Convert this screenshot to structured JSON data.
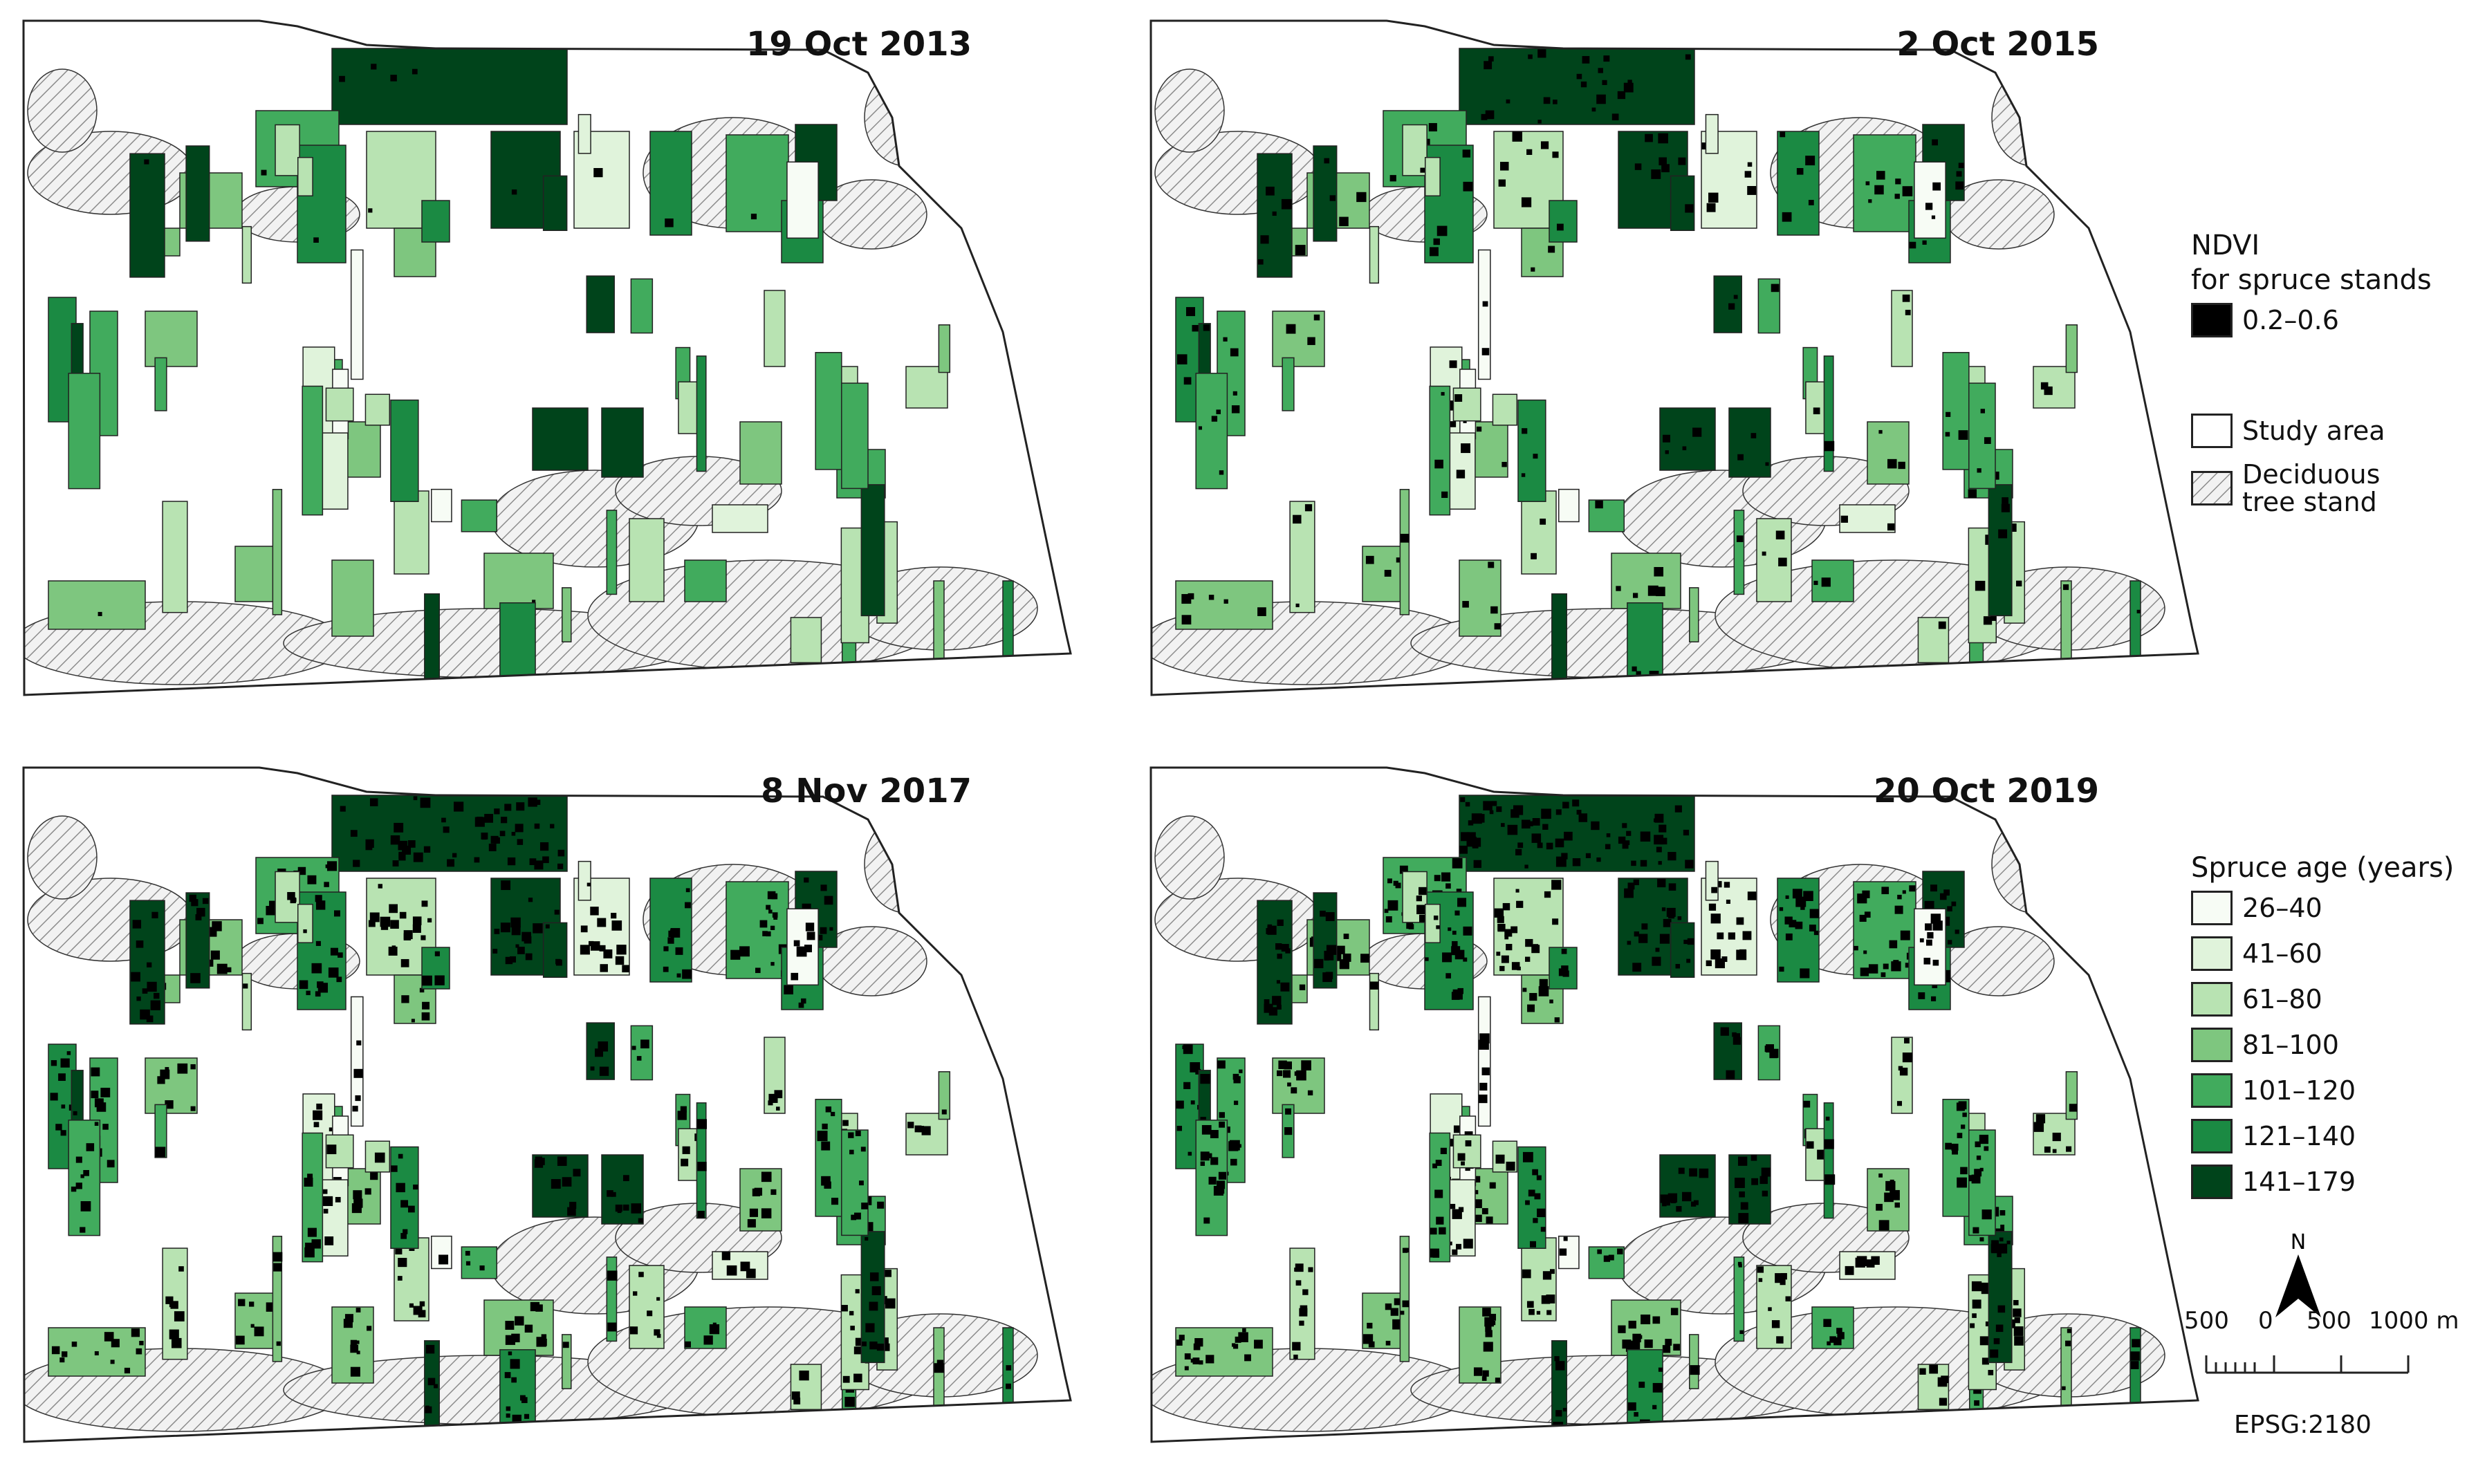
{
  "panels": [
    {
      "id": "p2013",
      "title": "19 Oct 2013",
      "dark_level": 0.05
    },
    {
      "id": "p2015",
      "title": "2 Oct 2015",
      "dark_level": 0.25
    },
    {
      "id": "p2017",
      "title": "8 Nov 2017",
      "dark_level": 0.55
    },
    {
      "id": "p2019",
      "title": "20 Oct 2019",
      "dark_level": 0.7
    }
  ],
  "legend": {
    "ndvi_heading_line1": "NDVI",
    "ndvi_heading_line2": "for spruce stands",
    "ndvi_range_label": "0.2–0.6",
    "ndvi_color": "#000000",
    "study_area_label": "Study area",
    "deciduous_label_line1": "Deciduous",
    "deciduous_label_line2": "tree stand",
    "age_heading": "Spruce age (years)",
    "age_classes": [
      {
        "label": "26–40",
        "color": "#f7fcf5"
      },
      {
        "label": "41–60",
        "color": "#e0f3db"
      },
      {
        "label": "61–80",
        "color": "#b8e3b2"
      },
      {
        "label": "81–100",
        "color": "#7ec67f"
      },
      {
        "label": "101–120",
        "color": "#41ab5d"
      },
      {
        "label": "121–140",
        "color": "#1b8a43"
      },
      {
        "label": "141–179",
        "color": "#00441b"
      }
    ]
  },
  "scalebar": {
    "labels": [
      "500",
      "0",
      "500",
      "1000 m"
    ]
  },
  "north_arrow_label": "N",
  "crs_label": "EPSG:2180",
  "colors": {
    "hatch": "#9a9a9a",
    "outline": "#222222"
  }
}
